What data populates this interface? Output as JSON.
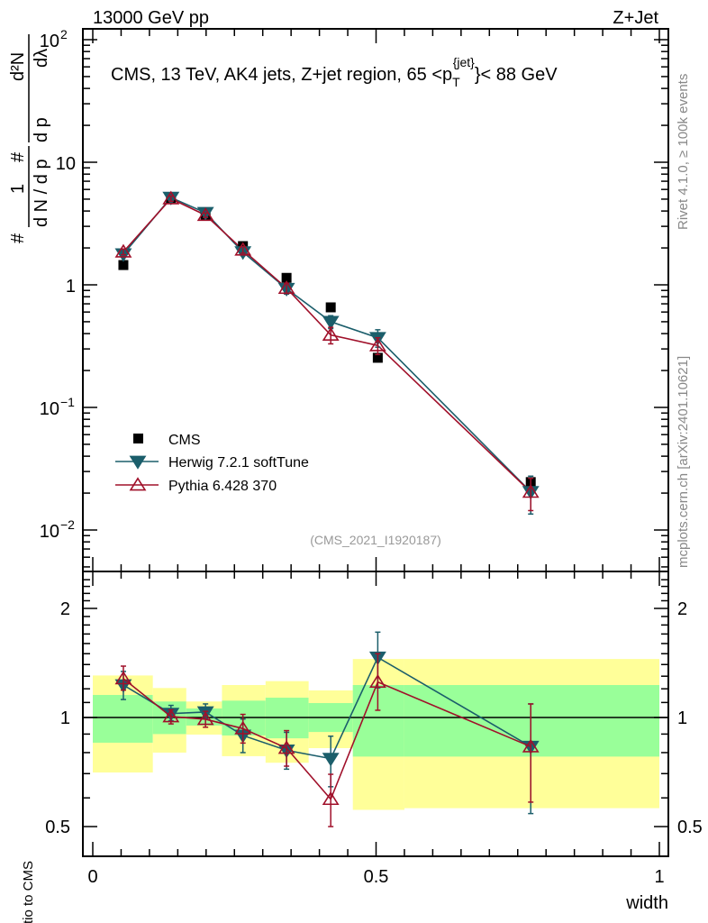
{
  "header": {
    "left": "13000 GeV pp",
    "right": "Z+Jet"
  },
  "side_labels": {
    "rivet": "Rivet 4.1.0, ≥ 100k events",
    "mcplots": "mcplots.cern.ch [arXiv:2401.10621]"
  },
  "colors": {
    "cms": "#000000",
    "herwig": "#1b5e6b",
    "pythia": "#a0102a",
    "band_inner": "#99ff99",
    "band_outer": "#ffff99"
  },
  "chart_data": [
    {
      "type": "scatter",
      "title": "CMS, 13 TeV, AK4 jets, Z+jet region, 65 <p_T^{jet}< 88 GeV",
      "title_parts": {
        "main": "CMS, 13 TeV, AK4 jets, Z+jet region, 65 <p",
        "sub": "T",
        "sup": "{jet}",
        "tail": "}< 88 GeV"
      },
      "ylabel": "1/(dN/dp_T) d²N/(dp_T dλ)",
      "ylabel_parts": {
        "one": "1",
        "den": "d N / d p",
        "T": "T",
        "num": "d²N",
        "den2": "d p",
        "lam": "dλ",
        "hash": "#"
      },
      "xlabel": "width",
      "yscale": "log",
      "ylim": [
        0.005,
        130
      ],
      "xlim": [
        -0.02,
        1.0
      ],
      "y_ticks": [
        {
          "v": 100,
          "label": "10",
          "exp": "2"
        },
        {
          "v": 10,
          "label": "10",
          "exp": ""
        },
        {
          "v": 1,
          "label": "1",
          "exp": ""
        },
        {
          "v": 0.1,
          "label": "10",
          "exp": "−1"
        },
        {
          "v": 0.01,
          "label": "10",
          "exp": "−2"
        }
      ],
      "annotation": "(CMS_2021_I1920187)",
      "legend_position": "bottom-left",
      "x": [
        0.054,
        0.138,
        0.199,
        0.265,
        0.342,
        0.42,
        0.503,
        0.773
      ],
      "bin_edges": [
        0,
        0.106,
        0.165,
        0.228,
        0.305,
        0.381,
        0.459,
        0.55,
        1.0
      ],
      "series": [
        {
          "name": "CMS",
          "marker": "square",
          "values": [
            1.45,
            5.1,
            3.74,
            2.07,
            1.14,
            0.655,
            0.254,
            0.0246
          ]
        },
        {
          "name": "Herwig 7.2.1 softTune",
          "marker": "triangle-down",
          "values": [
            1.78,
            5.15,
            3.87,
            1.85,
            0.93,
            0.5,
            0.37,
            0.0205
          ],
          "err": [
            0.1,
            0.25,
            0.15,
            0.12,
            0.09,
            0.06,
            0.06,
            0.007
          ]
        },
        {
          "name": "Pythia 6.428 370",
          "marker": "triangle-open",
          "values": [
            1.86,
            5.05,
            3.7,
            1.93,
            0.94,
            0.39,
            0.32,
            0.0204
          ],
          "err": [
            0.1,
            0.25,
            0.15,
            0.12,
            0.09,
            0.06,
            0.05,
            0.006
          ]
        }
      ]
    },
    {
      "type": "scatter",
      "ylabel": "Ratio to CMS",
      "xlabel": "width",
      "yscale": "log",
      "ylim": [
        0.4,
        2.5
      ],
      "x_ticks": [
        {
          "v": 0,
          "label": "0"
        },
        {
          "v": 0.5,
          "label": "0.5"
        },
        {
          "v": 1,
          "label": "1"
        }
      ],
      "y_ticks": [
        {
          "v": 2,
          "label": "2"
        },
        {
          "v": 1,
          "label": "1"
        },
        {
          "v": 0.5,
          "label": "0.5"
        }
      ],
      "bands": {
        "outer_hi": [
          1.306,
          1.206,
          1.107,
          1.229,
          1.26,
          1.188,
          1.45,
          1.45
        ],
        "outer_lo": [
          0.705,
          0.8,
          0.897,
          0.782,
          0.75,
          0.823,
          0.556,
          0.562
        ],
        "inner_hi": [
          1.154,
          1.107,
          1.059,
          1.113,
          1.134,
          1.096,
          1.229,
          1.229
        ],
        "inner_lo": [
          0.852,
          0.9,
          0.95,
          0.892,
          0.876,
          0.912,
          0.78,
          0.78
        ]
      },
      "series": [
        {
          "name": "Herwig 7.2.1 softTune",
          "values": [
            1.229,
            1.025,
            1.035,
            0.892,
            0.812,
            0.77,
            1.465,
            0.831
          ],
          "lo": [
            1.121,
            0.98,
            0.99,
            0.8,
            0.72,
            0.644,
            1.207,
            0.543
          ],
          "hi": [
            1.34,
            1.08,
            1.09,
            0.99,
            0.91,
            0.888,
            1.72,
            1.09
          ]
        },
        {
          "name": "Pythia 6.428 370",
          "values": [
            1.28,
            1.006,
            0.989,
            0.932,
            0.823,
            0.595,
            1.253,
            0.831
          ],
          "lo": [
            1.19,
            0.96,
            0.94,
            0.85,
            0.734,
            0.5,
            1.047,
            0.584
          ],
          "hi": [
            1.386,
            1.05,
            1.04,
            1.02,
            0.92,
            0.697,
            1.5,
            1.09
          ]
        }
      ]
    }
  ]
}
